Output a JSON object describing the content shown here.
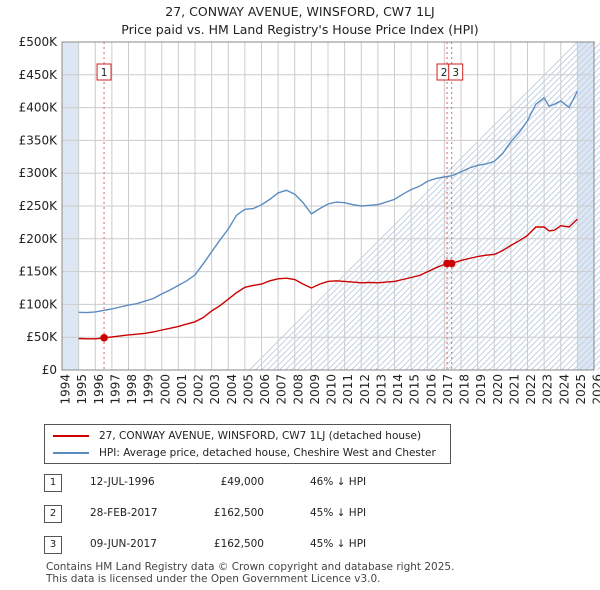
{
  "header": {
    "title_line1": "27, CONWAY AVENUE, WINSFORD, CW7 1LJ",
    "title_line2": "Price paid vs. HM Land Registry's House Price Index (HPI)"
  },
  "legend": {
    "property_label": "27, CONWAY AVENUE, WINSFORD, CW7 1LJ (detached house)",
    "hpi_label": "HPI: Average price, detached house, Cheshire West and Chester"
  },
  "transactions": [
    {
      "num": "1",
      "date": "12-JUL-1996",
      "price": "£49,000",
      "hpi": "46% ↓ HPI"
    },
    {
      "num": "2",
      "date": "28-FEB-2017",
      "price": "£162,500",
      "hpi": "45% ↓ HPI"
    },
    {
      "num": "3",
      "date": "09-JUN-2017",
      "price": "£162,500",
      "hpi": "45% ↓ HPI"
    }
  ],
  "footer": {
    "line1": "Contains HM Land Registry data © Crown copyright and database right 2025.",
    "line2": "This data is licensed under the Open Government Licence v3.0."
  },
  "colors": {
    "property": "#cc0000",
    "hpi": "#5b8cc0",
    "grid": "#cccccc",
    "bg": "#dde7f4",
    "axis_text": "#222222"
  },
  "chart_data": {
    "type": "line",
    "title": "27, CONWAY AVENUE, WINSFORD, CW7 1LJ — Price paid vs. HM Land Registry's House Price Index (HPI)",
    "xlabel": "",
    "ylabel": "",
    "xlim": [
      1994,
      2026
    ],
    "ylim": [
      0,
      500000
    ],
    "x_ticks": [
      1994,
      1995,
      1996,
      1997,
      1998,
      1999,
      2000,
      2001,
      2002,
      2003,
      2004,
      2005,
      2006,
      2007,
      2008,
      2009,
      2010,
      2011,
      2012,
      2013,
      2014,
      2015,
      2016,
      2017,
      2018,
      2019,
      2020,
      2021,
      2022,
      2023,
      2024,
      2025,
      2026
    ],
    "y_ticks": [
      {
        "value": 0,
        "label": "£0"
      },
      {
        "value": 50000,
        "label": "£50K"
      },
      {
        "value": 100000,
        "label": "£100K"
      },
      {
        "value": 150000,
        "label": "£150K"
      },
      {
        "value": 200000,
        "label": "£200K"
      },
      {
        "value": 250000,
        "label": "£250K"
      },
      {
        "value": 300000,
        "label": "£300K"
      },
      {
        "value": 350000,
        "label": "£350K"
      },
      {
        "value": 400000,
        "label": "£400K"
      },
      {
        "value": 450000,
        "label": "£450K"
      },
      {
        "value": 500000,
        "label": "£500K"
      }
    ],
    "shaded_ranges": [
      [
        1994,
        1995
      ],
      [
        2025,
        2026
      ]
    ],
    "grid": true,
    "series": [
      {
        "name": "27, CONWAY AVENUE, WINSFORD, CW7 1LJ (detached house)",
        "color": "#cc0000",
        "points": [
          [
            1995.0,
            48000
          ],
          [
            1995.5,
            47500
          ],
          [
            1996.0,
            47500
          ],
          [
            1996.53,
            49000
          ],
          [
            1997.0,
            50500
          ],
          [
            1997.5,
            52000
          ],
          [
            1998.0,
            53500
          ],
          [
            1998.5,
            54500
          ],
          [
            1999.0,
            56000
          ],
          [
            1999.5,
            58000
          ],
          [
            2000.0,
            61000
          ],
          [
            2000.5,
            63500
          ],
          [
            2001.0,
            66500
          ],
          [
            2001.5,
            70000
          ],
          [
            2002.0,
            73500
          ],
          [
            2002.5,
            80000
          ],
          [
            2003.0,
            90000
          ],
          [
            2003.5,
            98000
          ],
          [
            2004.0,
            108000
          ],
          [
            2004.5,
            118000
          ],
          [
            2005.0,
            126000
          ],
          [
            2005.5,
            129000
          ],
          [
            2006.0,
            131000
          ],
          [
            2006.5,
            136000
          ],
          [
            2007.0,
            139000
          ],
          [
            2007.5,
            140000
          ],
          [
            2008.0,
            138000
          ],
          [
            2008.5,
            131000
          ],
          [
            2009.0,
            125000
          ],
          [
            2009.5,
            131000
          ],
          [
            2010.0,
            135000
          ],
          [
            2010.5,
            136000
          ],
          [
            2011.0,
            135000
          ],
          [
            2011.5,
            134000
          ],
          [
            2012.0,
            133000
          ],
          [
            2012.5,
            133500
          ],
          [
            2013.0,
            133000
          ],
          [
            2013.5,
            134000
          ],
          [
            2014.0,
            135000
          ],
          [
            2014.5,
            138000
          ],
          [
            2015.0,
            141000
          ],
          [
            2015.5,
            144000
          ],
          [
            2016.0,
            150000
          ],
          [
            2016.5,
            156000
          ],
          [
            2017.16,
            162500
          ],
          [
            2017.44,
            162500
          ],
          [
            2018.0,
            167000
          ],
          [
            2018.5,
            170000
          ],
          [
            2019.0,
            173000
          ],
          [
            2019.5,
            175000
          ],
          [
            2020.0,
            176000
          ],
          [
            2020.5,
            182000
          ],
          [
            2021.0,
            190000
          ],
          [
            2021.5,
            197000
          ],
          [
            2022.0,
            205000
          ],
          [
            2022.5,
            218000
          ],
          [
            2023.0,
            218000
          ],
          [
            2023.3,
            212000
          ],
          [
            2023.6,
            213000
          ],
          [
            2024.0,
            220000
          ],
          [
            2024.5,
            218000
          ],
          [
            2025.0,
            230000
          ]
        ]
      },
      {
        "name": "HPI: Average price, detached house, Cheshire West and Chester",
        "color": "#5b8cc0",
        "points": [
          [
            1995.0,
            88000
          ],
          [
            1995.5,
            87500
          ],
          [
            1996.0,
            88500
          ],
          [
            1996.53,
            91000
          ],
          [
            1997.0,
            93000
          ],
          [
            1997.5,
            96000
          ],
          [
            1998.0,
            99000
          ],
          [
            1998.5,
            101000
          ],
          [
            1999.0,
            105000
          ],
          [
            1999.5,
            109000
          ],
          [
            2000.0,
            116000
          ],
          [
            2000.5,
            122000
          ],
          [
            2001.0,
            129000
          ],
          [
            2001.5,
            136000
          ],
          [
            2002.0,
            145000
          ],
          [
            2002.5,
            162000
          ],
          [
            2003.0,
            180000
          ],
          [
            2003.5,
            198000
          ],
          [
            2004.0,
            215000
          ],
          [
            2004.5,
            236000
          ],
          [
            2005.0,
            245000
          ],
          [
            2005.5,
            246000
          ],
          [
            2006.0,
            252000
          ],
          [
            2006.5,
            260000
          ],
          [
            2007.0,
            270000
          ],
          [
            2007.5,
            274000
          ],
          [
            2008.0,
            268000
          ],
          [
            2008.5,
            255000
          ],
          [
            2009.0,
            238000
          ],
          [
            2009.5,
            246000
          ],
          [
            2010.0,
            253000
          ],
          [
            2010.5,
            256000
          ],
          [
            2011.0,
            255000
          ],
          [
            2011.5,
            252000
          ],
          [
            2012.0,
            250000
          ],
          [
            2012.5,
            251000
          ],
          [
            2013.0,
            252000
          ],
          [
            2013.5,
            256000
          ],
          [
            2014.0,
            260000
          ],
          [
            2014.5,
            268000
          ],
          [
            2015.0,
            275000
          ],
          [
            2015.5,
            280000
          ],
          [
            2016.0,
            288000
          ],
          [
            2016.5,
            292000
          ],
          [
            2017.16,
            295000
          ],
          [
            2017.44,
            296000
          ],
          [
            2018.0,
            302000
          ],
          [
            2018.5,
            308000
          ],
          [
            2019.0,
            312000
          ],
          [
            2019.5,
            314000
          ],
          [
            2020.0,
            318000
          ],
          [
            2020.5,
            330000
          ],
          [
            2021.0,
            348000
          ],
          [
            2021.5,
            362000
          ],
          [
            2022.0,
            380000
          ],
          [
            2022.5,
            405000
          ],
          [
            2023.0,
            415000
          ],
          [
            2023.3,
            402000
          ],
          [
            2023.6,
            405000
          ],
          [
            2024.0,
            410000
          ],
          [
            2024.5,
            400000
          ],
          [
            2025.0,
            425000
          ]
        ]
      }
    ],
    "markers": [
      {
        "label": "1",
        "x": 1996.53,
        "y": 49000
      },
      {
        "label": "2",
        "x": 2017.16,
        "y": 162500
      },
      {
        "label": "3",
        "x": 2017.44,
        "y": 162500
      }
    ]
  }
}
